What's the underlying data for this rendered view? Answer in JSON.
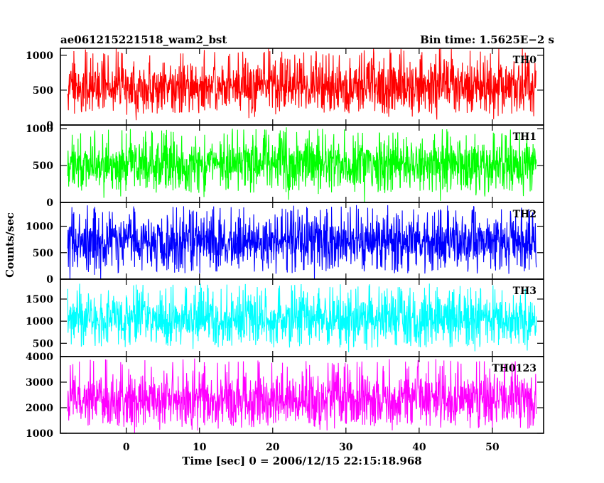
{
  "chart_data": {
    "type": "line",
    "title_left": "ae061215221518_wam2_bst",
    "title_right": "Bin time: 1.5625E−2 s",
    "xlabel": "Time [sec] 0 = 2006/12/15 22:15:18.968",
    "ylabel": "Counts/sec",
    "xlim": [
      -9,
      57
    ],
    "x_ticks": [
      0,
      10,
      20,
      30,
      40,
      50
    ],
    "data_x_range": [
      -8,
      56
    ],
    "panels": [
      {
        "name": "TH0",
        "color": "#ff0000",
        "ylim": [
          0,
          1100
        ],
        "y_ticks": [
          0,
          500,
          1000
        ],
        "mean": 560,
        "low_envelope": 160,
        "high_envelope": 1100
      },
      {
        "name": "TH1",
        "color": "#00ff00",
        "ylim": [
          0,
          1050
        ],
        "y_ticks": [
          0,
          500,
          1000
        ],
        "mean": 520,
        "low_envelope": 130,
        "high_envelope": 1000
      },
      {
        "name": "TH2",
        "color": "#0000ff",
        "ylim": [
          0,
          1450
        ],
        "y_ticks": [
          0,
          500,
          1000
        ],
        "mean": 720,
        "low_envelope": 100,
        "high_envelope": 1400
      },
      {
        "name": "TH3",
        "color": "#00ffff",
        "ylim": [
          200,
          1950
        ],
        "y_ticks": [
          500,
          1000,
          1500
        ],
        "mean": 1050,
        "low_envelope": 400,
        "high_envelope": 1850
      },
      {
        "name": "TH0123",
        "color": "#ff00ff",
        "ylim": [
          1000,
          4000
        ],
        "y_ticks": [
          1000,
          2000,
          3000,
          4000
        ],
        "mean": 2350,
        "low_envelope": 1300,
        "high_envelope": 3900
      }
    ]
  }
}
